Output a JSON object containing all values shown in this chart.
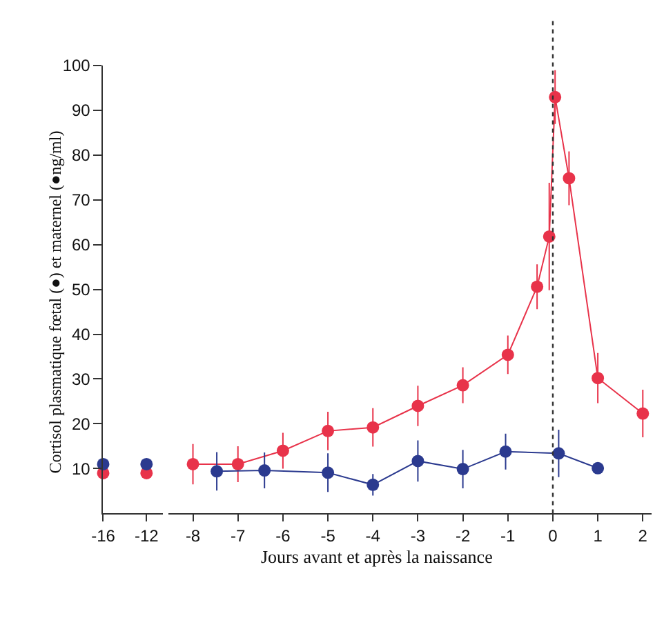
{
  "chart_data": [
    {
      "type": "scatter",
      "ylabel": "Cortisol plasmatique fœtal (●) et maternel (●ng/ml)",
      "xlim": [
        -16,
        -10.5
      ],
      "xticks": [
        -16,
        -12
      ],
      "ylim": [
        0,
        100
      ],
      "yticks": [
        10,
        20,
        30,
        40,
        50,
        60,
        70,
        80,
        90,
        100
      ],
      "marker": "circle",
      "series": [
        {
          "color": "#e8334a",
          "x": [
            -16,
            -12
          ],
          "values": [
            9,
            9
          ]
        },
        {
          "color": "#2b3a8f",
          "x": [
            -16,
            -12
          ],
          "values": [
            11,
            11
          ]
        }
      ]
    },
    {
      "type": "line",
      "xlabel": "Jours avant et après la naissance",
      "xlim": [
        -8.55,
        2.2
      ],
      "xticks": [
        -8,
        -7,
        -6,
        -5,
        -4,
        -3,
        -2,
        -1,
        0,
        1,
        2
      ],
      "ylim": [
        0,
        100
      ],
      "yticks": [
        10,
        20,
        30,
        40,
        50,
        60,
        70,
        80,
        90,
        100
      ],
      "tick_labels": "x",
      "marker": "circle",
      "line_style": "solid",
      "ref_lines": [
        {
          "axis": "x",
          "value": 0,
          "color": "#333333",
          "line_style": "dotted"
        }
      ],
      "series": [
        {
          "color": "#e8334a",
          "x": [
            -8,
            -7,
            -6,
            -5,
            -4,
            -3,
            -2,
            -1,
            -0.35,
            -0.08,
            0.05,
            0.36,
            1,
            2
          ],
          "values": [
            11,
            11,
            14,
            18.4,
            19.2,
            24,
            28.6,
            35.4,
            50.6,
            61.8,
            92.9,
            74.8,
            30.2,
            22.3
          ],
          "errors": [
            4.5,
            4,
            4,
            4.3,
            4.3,
            4.5,
            4,
            4.3,
            5,
            12,
            6,
            6,
            5.6,
            5.3
          ]
        },
        {
          "color": "#2b3a8f",
          "x": [
            -7.47,
            -6.41,
            -5,
            -4,
            -3,
            -2,
            -1.05,
            0.13,
            1
          ],
          "values": [
            9.4,
            9.6,
            9.1,
            6.4,
            11.7,
            9.9,
            13.8,
            13.4,
            10.1
          ],
          "errors": [
            4.3,
            4,
            4.3,
            2.4,
            4.6,
            4.3,
            4,
            5.3,
            null
          ]
        }
      ]
    }
  ]
}
